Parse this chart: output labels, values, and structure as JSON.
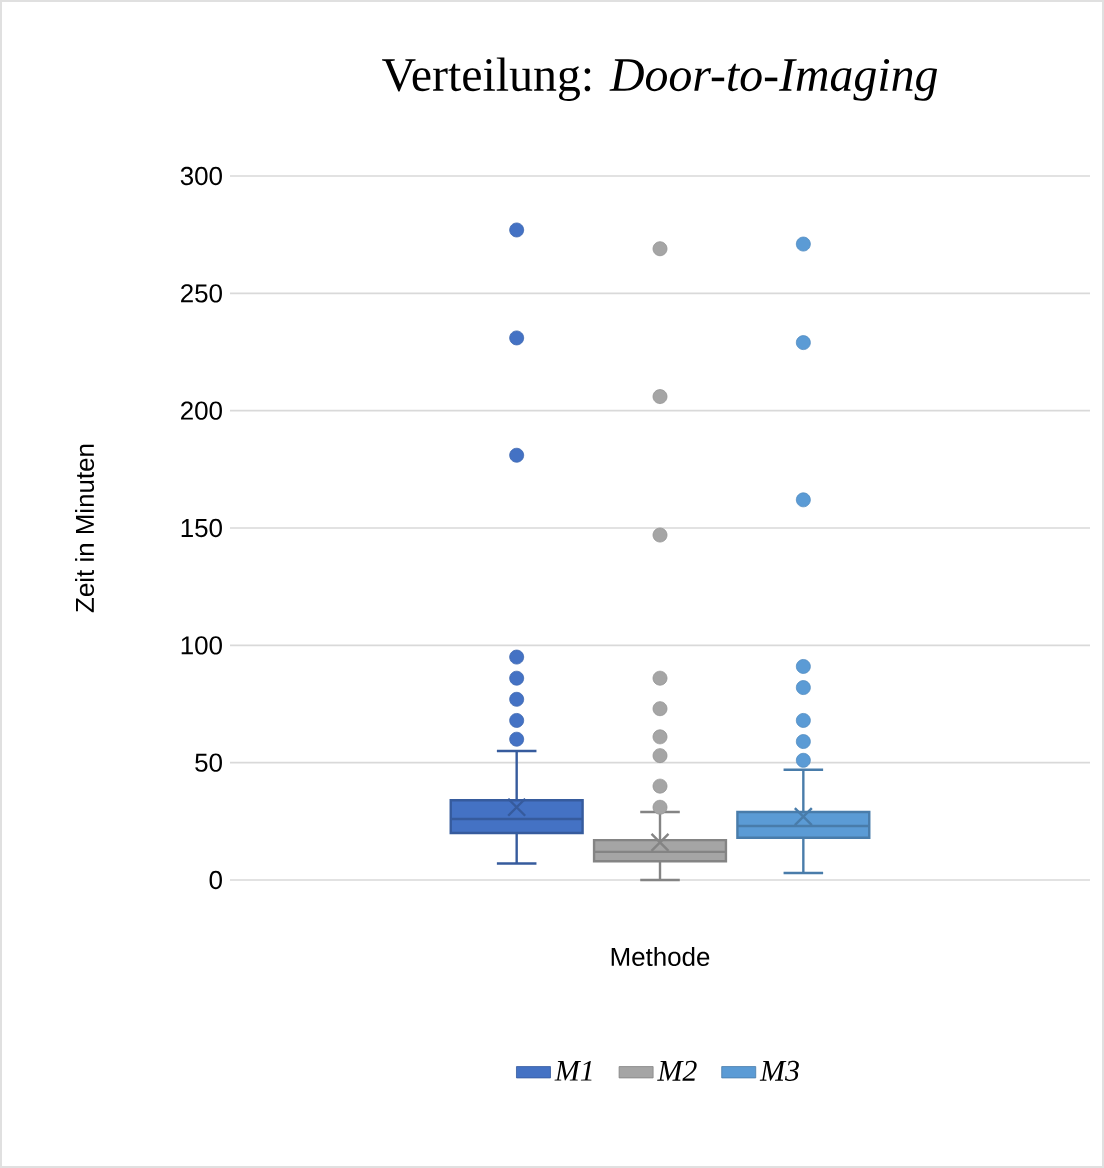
{
  "chart_data": {
    "type": "box",
    "title": "Verteilung: *Door-to-Imaging*",
    "xlabel": "Methode",
    "ylabel": "Zeit in Minuten",
    "categories": [
      null
    ],
    "ylim": [
      0,
      300
    ],
    "yticks": [
      0,
      50,
      100,
      150,
      200,
      250,
      300
    ],
    "grid": "y",
    "legend": "bottom",
    "marker": "circle",
    "series": [
      {
        "name": "M1",
        "color": "#4472c4",
        "boxes": [
          {
            "low": 7,
            "q1": 20,
            "median": 26,
            "q3": 34,
            "high": 55,
            "mean": 31,
            "outliers": [
              60,
              68,
              77,
              86,
              95,
              181,
              231,
              277
            ]
          }
        ]
      },
      {
        "name": "M2",
        "color": "#a5a5a5",
        "boxes": [
          {
            "low": 0,
            "q1": 8,
            "median": 12,
            "q3": 17,
            "high": 29,
            "mean": 16,
            "outliers": [
              31,
              40,
              53,
              61,
              73,
              86,
              147,
              206,
              269
            ]
          }
        ]
      },
      {
        "name": "M3",
        "color": "#5b9bd5",
        "boxes": [
          {
            "low": 3,
            "q1": 18,
            "median": 23,
            "q3": 29,
            "high": 47,
            "mean": 27,
            "outliers": [
              51,
              59,
              68,
              82,
              91,
              162,
              229,
              271
            ]
          }
        ]
      }
    ]
  }
}
